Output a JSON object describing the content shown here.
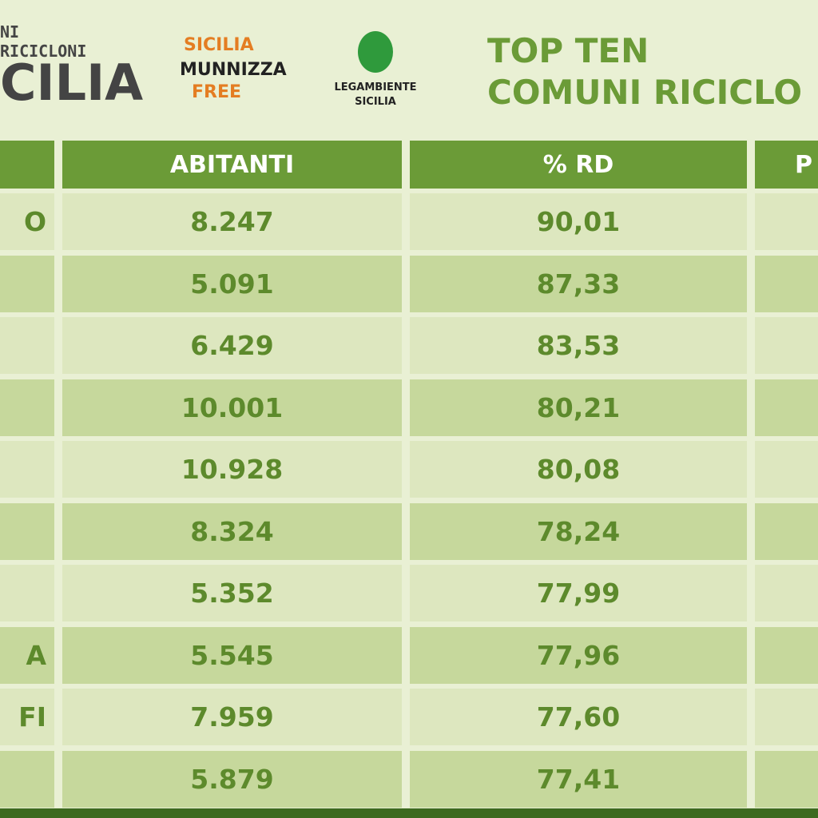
{
  "header": {
    "brand_line1": "NI RICICLONI",
    "brand_line2": "CILIA",
    "logo1": [
      "SICILIA",
      "MUNNIZZA",
      "FREE"
    ],
    "logo2": [
      "LEGAMBIENTE",
      "SICILIA"
    ],
    "title": [
      "TOP TEN",
      "COMUNI RICICLO"
    ]
  },
  "table": {
    "columns": [
      "ABITANTI",
      "% RD",
      "P"
    ],
    "rows": [
      {
        "name": "O",
        "abitanti": "8.247",
        "rd": "90,01"
      },
      {
        "abitanti": "5.091",
        "rd": "87,33"
      },
      {
        "abitanti": "6.429",
        "rd": "83,53"
      },
      {
        "abitanti": "10.001",
        "rd": "80,21"
      },
      {
        "abitanti": "10.928",
        "rd": "80,08"
      },
      {
        "abitanti": "8.324",
        "rd": "78,24"
      },
      {
        "abitanti": "5.352",
        "rd": "77,99"
      },
      {
        "name": "A",
        "abitanti": "5.545",
        "rd": "77,96"
      },
      {
        "name": "FI",
        "abitanti": "7.959",
        "rd": "77,60"
      },
      {
        "abitanti": "5.879",
        "rd": "77,41"
      }
    ]
  }
}
